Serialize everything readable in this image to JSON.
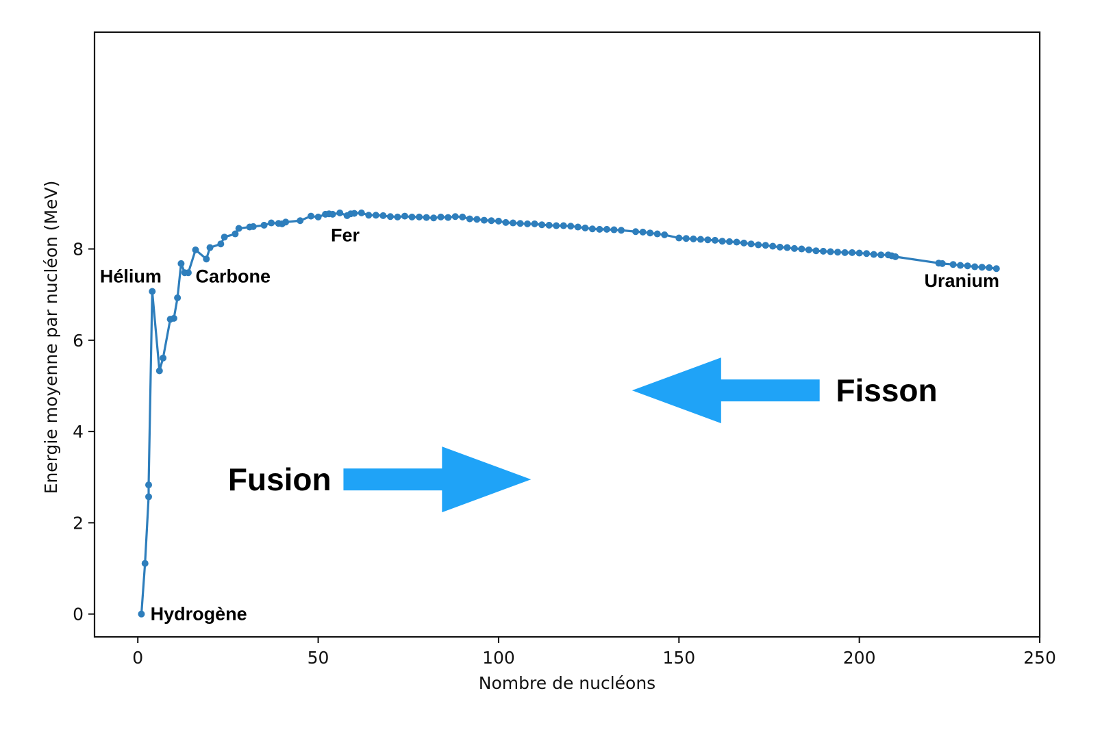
{
  "chart_data": {
    "type": "line",
    "title": "",
    "xlabel": "Nombre de nucléons",
    "ylabel": "Energie moyenne par nucléon (MeV)",
    "xlim": [
      -12,
      250
    ],
    "ylim": [
      -0.5,
      12.75
    ],
    "xticks": [
      0,
      50,
      100,
      150,
      200,
      250
    ],
    "yticks": [
      0,
      2,
      4,
      6,
      8
    ],
    "xtick_labels": [
      "0",
      "50",
      "100",
      "150",
      "200",
      "250"
    ],
    "ytick_labels": [
      "0",
      "2",
      "4",
      "6",
      "8"
    ],
    "grid": false,
    "legend": "none",
    "colors": {
      "series": "#2e7ebc",
      "arrow": "#1fa3f7"
    },
    "series": [
      {
        "values": [
          [
            1,
            0.0
          ],
          [
            2,
            1.11
          ],
          [
            3,
            2.57
          ],
          [
            3,
            2.83
          ],
          [
            4,
            7.07
          ],
          [
            6,
            5.33
          ],
          [
            7,
            5.61
          ],
          [
            9,
            6.46
          ],
          [
            10,
            6.48
          ],
          [
            11,
            6.93
          ],
          [
            12,
            7.68
          ],
          [
            13,
            7.48
          ],
          [
            14,
            7.48
          ],
          [
            16,
            7.98
          ],
          [
            19,
            7.78
          ],
          [
            20,
            8.03
          ],
          [
            23,
            8.11
          ],
          [
            24,
            8.26
          ],
          [
            27,
            8.33
          ],
          [
            28,
            8.45
          ],
          [
            31,
            8.48
          ],
          [
            32,
            8.49
          ],
          [
            35,
            8.52
          ],
          [
            37,
            8.57
          ],
          [
            39,
            8.56
          ],
          [
            40,
            8.55
          ],
          [
            41,
            8.59
          ],
          [
            45,
            8.62
          ],
          [
            48,
            8.72
          ],
          [
            50,
            8.7
          ],
          [
            52,
            8.76
          ],
          [
            53,
            8.77
          ],
          [
            54,
            8.76
          ],
          [
            56,
            8.79
          ],
          [
            58,
            8.73
          ],
          [
            59,
            8.77
          ],
          [
            60,
            8.78
          ],
          [
            62,
            8.79
          ],
          [
            64,
            8.74
          ],
          [
            66,
            8.74
          ],
          [
            68,
            8.73
          ],
          [
            70,
            8.71
          ],
          [
            72,
            8.7
          ],
          [
            74,
            8.72
          ],
          [
            76,
            8.7
          ],
          [
            78,
            8.7
          ],
          [
            80,
            8.69
          ],
          [
            82,
            8.68
          ],
          [
            84,
            8.7
          ],
          [
            86,
            8.69
          ],
          [
            88,
            8.71
          ],
          [
            90,
            8.7
          ],
          [
            92,
            8.66
          ],
          [
            94,
            8.65
          ],
          [
            96,
            8.63
          ],
          [
            98,
            8.62
          ],
          [
            100,
            8.61
          ],
          [
            102,
            8.58
          ],
          [
            104,
            8.57
          ],
          [
            106,
            8.56
          ],
          [
            108,
            8.55
          ],
          [
            110,
            8.55
          ],
          [
            112,
            8.53
          ],
          [
            114,
            8.52
          ],
          [
            116,
            8.51
          ],
          [
            118,
            8.51
          ],
          [
            120,
            8.5
          ],
          [
            122,
            8.48
          ],
          [
            124,
            8.46
          ],
          [
            126,
            8.44
          ],
          [
            128,
            8.43
          ],
          [
            130,
            8.43
          ],
          [
            132,
            8.42
          ],
          [
            134,
            8.41
          ],
          [
            138,
            8.38
          ],
          [
            140,
            8.37
          ],
          [
            142,
            8.35
          ],
          [
            144,
            8.33
          ],
          [
            146,
            8.31
          ],
          [
            150,
            8.24
          ],
          [
            152,
            8.23
          ],
          [
            154,
            8.22
          ],
          [
            156,
            8.21
          ],
          [
            158,
            8.2
          ],
          [
            160,
            8.19
          ],
          [
            162,
            8.17
          ],
          [
            164,
            8.16
          ],
          [
            166,
            8.15
          ],
          [
            168,
            8.13
          ],
          [
            170,
            8.11
          ],
          [
            172,
            8.09
          ],
          [
            174,
            8.08
          ],
          [
            176,
            8.06
          ],
          [
            178,
            8.04
          ],
          [
            180,
            8.03
          ],
          [
            182,
            8.01
          ],
          [
            184,
            8.0
          ],
          [
            186,
            7.98
          ],
          [
            188,
            7.96
          ],
          [
            190,
            7.95
          ],
          [
            192,
            7.94
          ],
          [
            194,
            7.93
          ],
          [
            196,
            7.92
          ],
          [
            198,
            7.92
          ],
          [
            200,
            7.91
          ],
          [
            202,
            7.9
          ],
          [
            204,
            7.88
          ],
          [
            206,
            7.87
          ],
          [
            208,
            7.87
          ],
          [
            209,
            7.85
          ],
          [
            210,
            7.83
          ],
          [
            222,
            7.69
          ],
          [
            223,
            7.68
          ],
          [
            226,
            7.66
          ],
          [
            228,
            7.64
          ],
          [
            230,
            7.63
          ],
          [
            232,
            7.61
          ],
          [
            234,
            7.6
          ],
          [
            236,
            7.59
          ],
          [
            238,
            7.57
          ]
        ]
      }
    ],
    "annotations": [
      {
        "text": "Hydrogène",
        "x": 3.5,
        "y": 0.0
      },
      {
        "text": "Hélium",
        "x": -10.5,
        "y": 7.4
      },
      {
        "text": "Carbone",
        "x": 16,
        "y": 7.4
      },
      {
        "text": "Fer",
        "x": 53.5,
        "y": 8.3
      },
      {
        "text": "Uranium",
        "x": 218,
        "y": 7.3
      },
      {
        "text": "Fusion",
        "x": 25,
        "y": 2.95
      },
      {
        "text": "Fisson",
        "x": 193.5,
        "y": 4.9
      }
    ],
    "arrows": [
      {
        "direction": "right",
        "from_x": 57,
        "to_x": 109,
        "y": 2.95
      },
      {
        "direction": "left",
        "from_x": 189,
        "to_x": 137,
        "y": 4.9
      }
    ]
  }
}
